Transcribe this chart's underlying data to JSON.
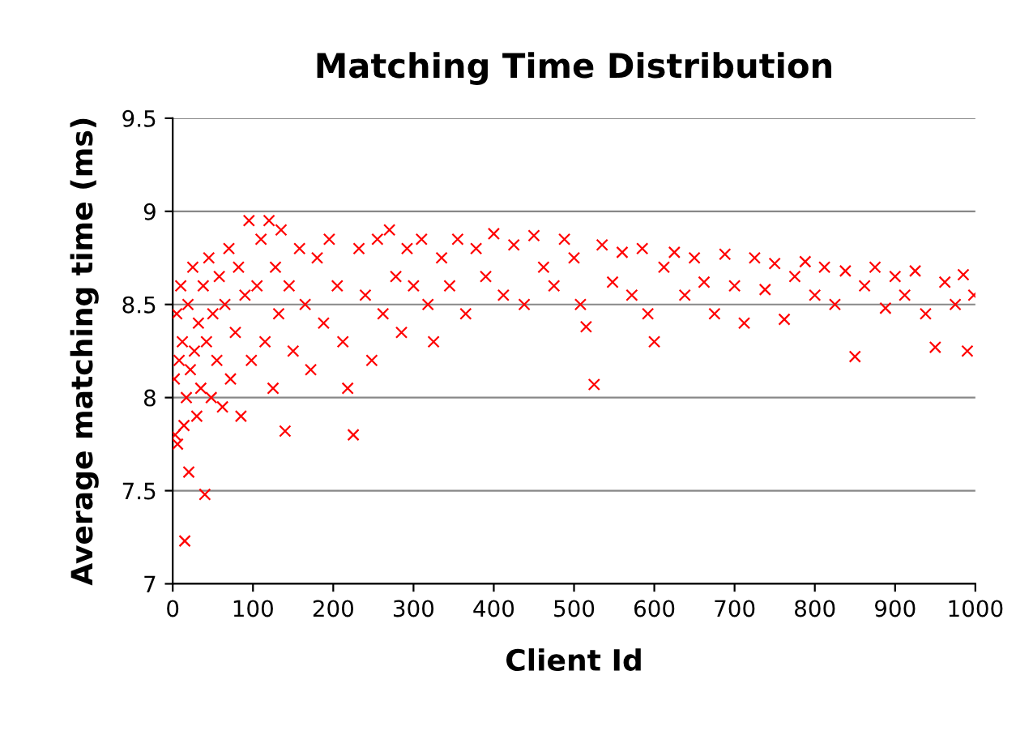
{
  "chart_data": {
    "type": "scatter",
    "title": "Matching Time Distribution",
    "xlabel": "Client Id",
    "ylabel": "Average matching time (ms)",
    "xlim": [
      0,
      1000
    ],
    "xticks": [
      0,
      100,
      200,
      300,
      400,
      500,
      600,
      700,
      800,
      900,
      1000
    ],
    "ylim": [
      7,
      9.5
    ],
    "yticks": [
      7,
      7.5,
      8,
      8.5,
      9,
      9.5
    ],
    "grid": "y",
    "legend": false,
    "marker": "cross",
    "series": [
      {
        "color": "#ff0000",
        "x": [
          2,
          3,
          5,
          6,
          8,
          10,
          12,
          14,
          15,
          17,
          19,
          20,
          22,
          25,
          27,
          30,
          32,
          35,
          38,
          40,
          42,
          45,
          48,
          50,
          55,
          58,
          62,
          65,
          70,
          72,
          78,
          82,
          85,
          90,
          95,
          98,
          105,
          110,
          115,
          120,
          125,
          128,
          132,
          135,
          140,
          145,
          150,
          158,
          165,
          172,
          180,
          188,
          195,
          205,
          212,
          218,
          225,
          232,
          240,
          248,
          255,
          262,
          270,
          278,
          285,
          292,
          300,
          310,
          318,
          325,
          335,
          345,
          355,
          365,
          378,
          390,
          400,
          412,
          425,
          438,
          450,
          462,
          475,
          488,
          500,
          508,
          515,
          525,
          535,
          548,
          560,
          572,
          585,
          592,
          600,
          612,
          625,
          638,
          650,
          662,
          675,
          688,
          700,
          712,
          725,
          738,
          750,
          762,
          775,
          788,
          800,
          812,
          825,
          838,
          850,
          862,
          875,
          888,
          900,
          912,
          925,
          938,
          950,
          962,
          975,
          985,
          990,
          998
        ],
        "values": [
          8.1,
          7.8,
          8.45,
          7.75,
          8.2,
          8.6,
          8.3,
          7.85,
          7.23,
          8.0,
          8.5,
          7.6,
          8.15,
          8.7,
          8.25,
          7.9,
          8.4,
          8.05,
          8.6,
          7.48,
          8.3,
          8.75,
          8.0,
          8.45,
          8.2,
          8.65,
          7.95,
          8.5,
          8.8,
          8.1,
          8.35,
          8.7,
          7.9,
          8.55,
          8.95,
          8.2,
          8.6,
          8.85,
          8.3,
          8.95,
          8.05,
          8.7,
          8.45,
          8.9,
          7.82,
          8.6,
          8.25,
          8.8,
          8.5,
          8.15,
          8.75,
          8.4,
          8.85,
          8.6,
          8.3,
          8.05,
          7.8,
          8.8,
          8.55,
          8.2,
          8.85,
          8.45,
          8.9,
          8.65,
          8.35,
          8.8,
          8.6,
          8.85,
          8.5,
          8.3,
          8.75,
          8.6,
          8.85,
          8.45,
          8.8,
          8.65,
          8.88,
          8.55,
          8.82,
          8.5,
          8.87,
          8.7,
          8.6,
          8.85,
          8.75,
          8.5,
          8.38,
          8.07,
          8.82,
          8.62,
          8.78,
          8.55,
          8.8,
          8.45,
          8.3,
          8.7,
          8.78,
          8.55,
          8.75,
          8.62,
          8.45,
          8.77,
          8.6,
          8.4,
          8.75,
          8.58,
          8.72,
          8.42,
          8.65,
          8.73,
          8.55,
          8.7,
          8.5,
          8.68,
          8.22,
          8.6,
          8.7,
          8.48,
          8.65,
          8.55,
          8.68,
          8.45,
          8.27,
          8.62,
          8.5,
          8.66,
          8.25,
          8.55
        ]
      }
    ]
  }
}
